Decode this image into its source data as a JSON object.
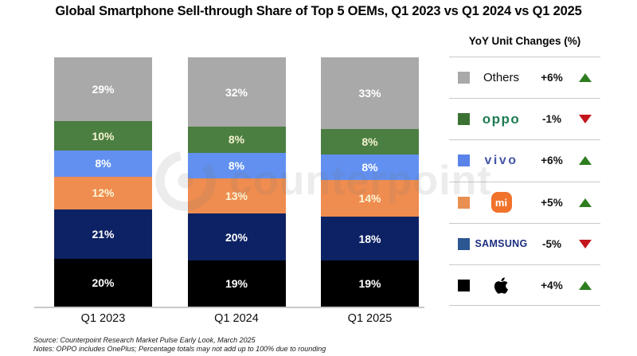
{
  "title": "Global Smartphone Sell-through Share of Top 5 OEMs, Q1 2023 vs Q1 2024 vs Q1 2025",
  "watermark": {
    "text": "counterpoint"
  },
  "chart_data": {
    "type": "bar",
    "stacked": true,
    "stack_order": "top-to-bottom",
    "categories": [
      "Q1 2023",
      "Q1 2024",
      "Q1 2025"
    ],
    "series": [
      {
        "name": "Others",
        "color": "#A9A9A9",
        "label_color": "#FFFFFF",
        "values": [
          29,
          32,
          33
        ]
      },
      {
        "name": "OPPO",
        "color": "#4B7E41",
        "label_color": "#F5F3D2",
        "values": [
          10,
          8,
          8
        ]
      },
      {
        "name": "vivo",
        "color": "#6190F0",
        "label_color": "#FFFFFF",
        "values": [
          8,
          8,
          8
        ]
      },
      {
        "name": "Xiaomi",
        "color": "#EF8C4F",
        "label_color": "#FBF7D8",
        "values": [
          12,
          13,
          14
        ]
      },
      {
        "name": "Samsung",
        "color": "#0D2264",
        "label_color": "#FFFFFF",
        "values": [
          21,
          20,
          18
        ]
      },
      {
        "name": "Apple",
        "color": "#000000",
        "label_color": "#FFFFFF",
        "values": [
          20,
          19,
          19
        ]
      }
    ],
    "value_suffix": "%",
    "ylim": [
      0,
      100
    ],
    "grid": false,
    "legend_position": "right"
  },
  "legend": {
    "title": "YoY Unit Changes (%)",
    "up_color": "#2E7D1E",
    "down_color": "#C3161C",
    "rows": [
      {
        "brand": "Others",
        "logo_type": "text",
        "logo_text": "Others",
        "swatch": "#A9A9A9",
        "change": "+6%",
        "direction": "up"
      },
      {
        "brand": "OPPO",
        "logo_type": "oppo",
        "logo_text": "oppo",
        "swatch": "#3B7233",
        "change": "-1%",
        "direction": "down"
      },
      {
        "brand": "vivo",
        "logo_type": "vivo",
        "logo_text": "vivo",
        "swatch": "#5A83EA",
        "change": "+6%",
        "direction": "up"
      },
      {
        "brand": "Xiaomi",
        "logo_type": "mi",
        "logo_text": "mi",
        "swatch": "#E98F51",
        "change": "+5%",
        "direction": "up"
      },
      {
        "brand": "Samsung",
        "logo_type": "samsung",
        "logo_text": "SAMSUNG",
        "swatch": "#2C5793",
        "change": "-5%",
        "direction": "down"
      },
      {
        "brand": "Apple",
        "logo_type": "apple",
        "logo_text": "",
        "swatch": "#000000",
        "change": "+4%",
        "direction": "up"
      }
    ]
  },
  "source": "Source: Counterpoint Research Market Pulse Early Look, March 2025",
  "notes": "Notes: OPPO includes OnePlus; Percentage totals may not add up to 100% due to rounding"
}
